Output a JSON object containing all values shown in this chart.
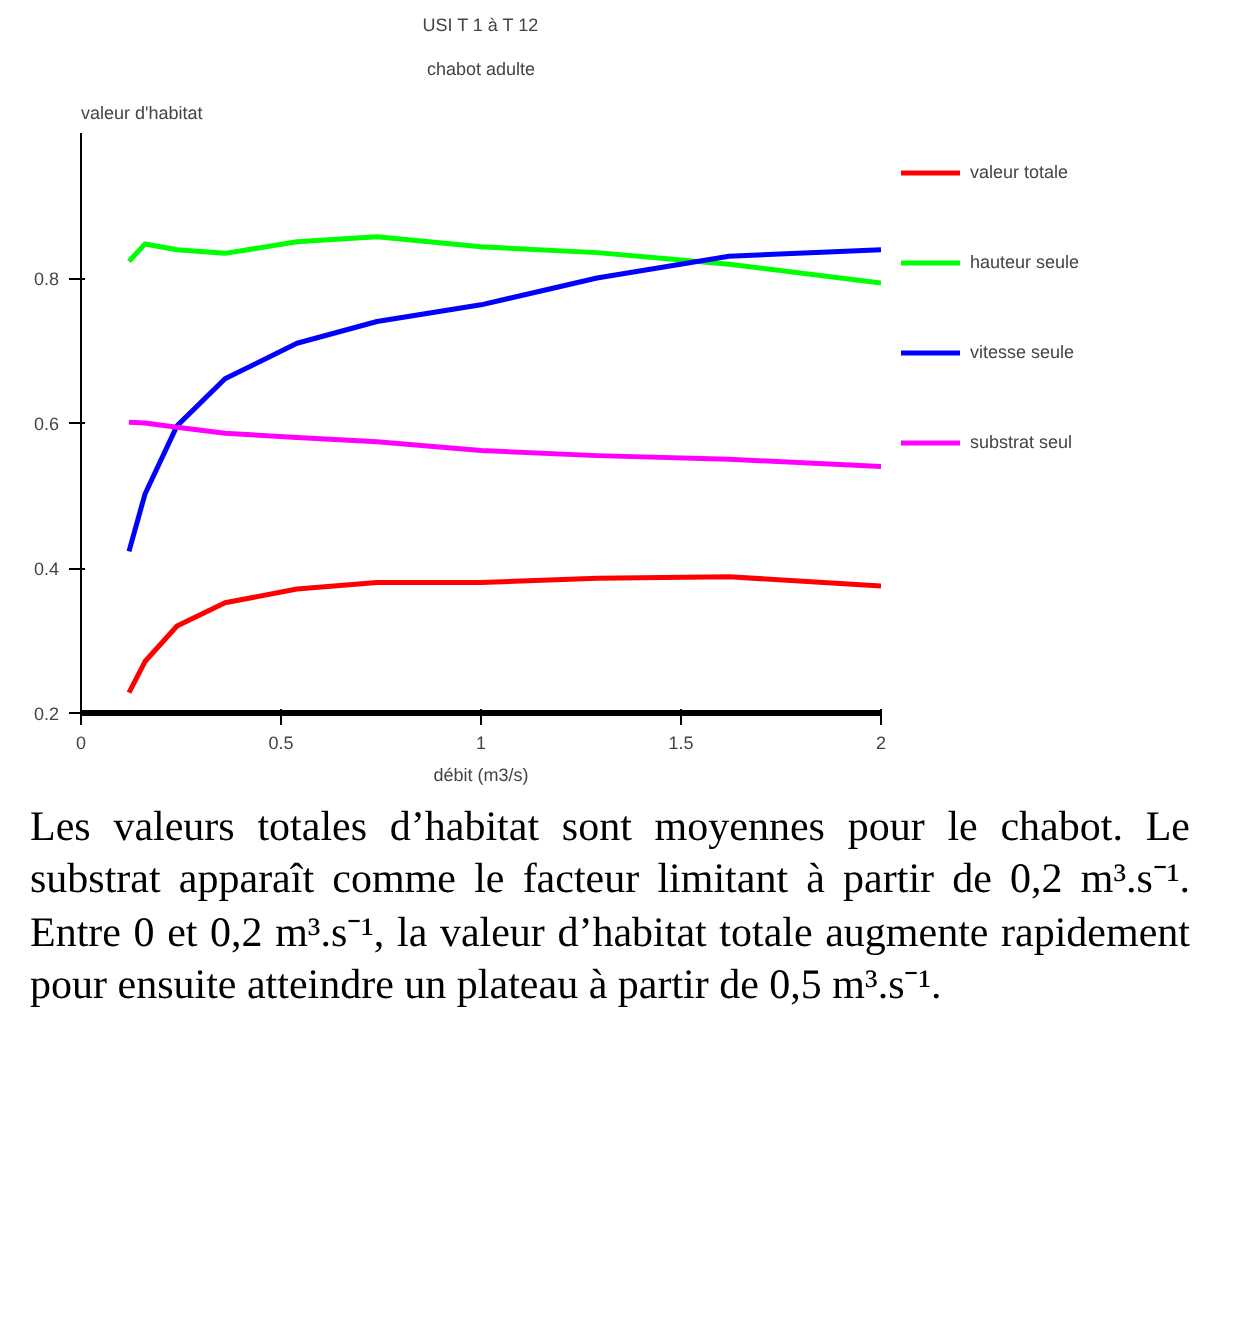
{
  "chart_data": {
    "type": "line",
    "title": "USI T 1 à T 12",
    "subtitle": "chabot adulte",
    "ylabel": "valeur d'habitat",
    "xlabel": "débit (m3/s)",
    "x": [
      0.12,
      0.16,
      0.24,
      0.36,
      0.54,
      0.74,
      1.0,
      1.29,
      1.62,
      2.0
    ],
    "series": [
      {
        "name": "valeur totale",
        "color": "#ff0000",
        "values": [
          0.228,
          0.271,
          0.32,
          0.352,
          0.371,
          0.38,
          0.38,
          0.386,
          0.388,
          0.375
        ]
      },
      {
        "name": "hauteur seule",
        "color": "#00ff00",
        "values": [
          0.823,
          0.847,
          0.839,
          0.834,
          0.85,
          0.857,
          0.843,
          0.835,
          0.819,
          0.793
        ]
      },
      {
        "name": "vitesse seule",
        "color": "#0000ff",
        "values": [
          0.423,
          0.502,
          0.596,
          0.661,
          0.71,
          0.74,
          0.763,
          0.8,
          0.83,
          0.839
        ]
      },
      {
        "name": "substrat seul",
        "color": "#ff00ff",
        "values": [
          0.601,
          0.6,
          0.594,
          0.586,
          0.58,
          0.574,
          0.562,
          0.555,
          0.55,
          0.54
        ]
      }
    ],
    "xlim": [
      0,
      2
    ],
    "ylim": [
      0.2,
      1.0
    ],
    "xticks": [
      0,
      0.5,
      1,
      1.5,
      2
    ],
    "yticks": [
      0.2,
      0.4,
      0.6,
      0.8
    ],
    "grid": false,
    "legend": "right",
    "marker": "none",
    "line_style": "solid",
    "annotations": [
      "Les valeurs totales d’habitat sont moyennes pour le chabot. Le substrat apparaît comme le facteur limitant à partir de 0,2 m³.s⁻¹. Entre 0 et 0,2 m³.s⁻¹, la valeur d’habitat totale augmente rapidement pour ensuite atteindre un plateau à partir de 0,5 m³.s⁻¹."
    ]
  }
}
